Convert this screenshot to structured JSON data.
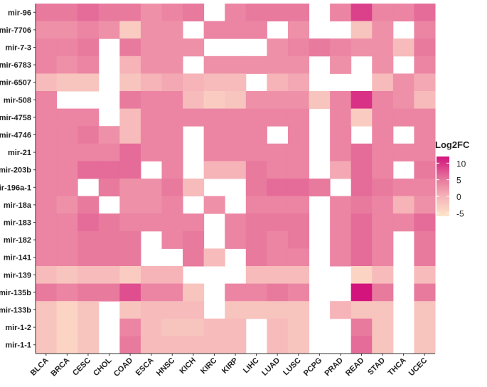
{
  "chart_data": {
    "type": "heatmap",
    "legend_title": "Log2FC",
    "x": [
      "BLCA",
      "BRCA",
      "CESC",
      "CHOL",
      "COAD",
      "ESCA",
      "HNSC",
      "KICH",
      "KIRC",
      "KIRP",
      "LIHC",
      "LUAD",
      "LUSC",
      "PCPG",
      "PRAD",
      "READ",
      "STAD",
      "THCA",
      "UCEC"
    ],
    "y": [
      "mir-96",
      "mir-7706",
      "mir-7-3",
      "mir-6783",
      "mir-6507",
      "mir-508",
      "mir-4758",
      "mir-4746",
      "mir-21",
      "mir-203b",
      "mir-196a-1",
      "mir-18a",
      "mir-183",
      "mir-182",
      "mir-141",
      "mir-139",
      "mir-135b",
      "mir-133b",
      "mir-1-2",
      "mir-1-1"
    ],
    "values": [
      [
        5,
        5,
        6,
        5,
        5,
        3,
        4,
        5,
        null,
        4,
        5,
        5,
        5,
        null,
        4,
        9,
        4,
        4,
        6
      ],
      [
        3,
        3,
        4,
        3,
        -3,
        3,
        3,
        null,
        4,
        4,
        4,
        null,
        3,
        null,
        null,
        -2,
        3,
        null,
        4
      ],
      [
        4,
        4,
        5,
        null,
        5,
        3,
        3,
        3,
        null,
        null,
        null,
        3,
        4,
        5,
        4,
        3,
        3,
        -1,
        5
      ],
      [
        4,
        3,
        4,
        null,
        0,
        3,
        3,
        null,
        3,
        3,
        3,
        3,
        3,
        null,
        3,
        null,
        3,
        null,
        4
      ],
      [
        -1,
        -2,
        -2,
        null,
        -2,
        0,
        1,
        0,
        -1,
        -1,
        null,
        0,
        1,
        null,
        null,
        null,
        -1,
        3,
        1
      ],
      [
        4,
        null,
        null,
        null,
        5,
        4,
        4,
        -1,
        -3,
        -2,
        3,
        3,
        3,
        -2,
        4,
        10,
        4,
        3,
        -1
      ],
      [
        4,
        4,
        4,
        null,
        -1,
        4,
        4,
        4,
        4,
        4,
        4,
        4,
        4,
        null,
        4,
        -3,
        4,
        4,
        4
      ],
      [
        4,
        4,
        5,
        3,
        -1,
        4,
        4,
        null,
        4,
        4,
        4,
        null,
        4,
        null,
        4,
        null,
        4,
        null,
        4
      ],
      [
        4,
        4,
        4,
        4,
        6,
        4,
        4,
        null,
        4,
        4,
        4,
        4,
        4,
        null,
        4,
        6,
        4,
        4,
        4
      ],
      [
        4,
        4,
        6,
        6,
        6,
        null,
        4,
        null,
        0,
        0,
        5,
        4,
        4,
        null,
        1,
        6,
        4,
        null,
        5
      ],
      [
        4,
        4,
        null,
        5,
        3,
        3,
        5,
        -1,
        null,
        null,
        5,
        6,
        6,
        5,
        null,
        6,
        5,
        4,
        4
      ],
      [
        4,
        3,
        5,
        null,
        3,
        3,
        4,
        null,
        3,
        null,
        4,
        4,
        4,
        null,
        4,
        5,
        4,
        0,
        3
      ],
      [
        4,
        4,
        6,
        5,
        4,
        4,
        4,
        4,
        null,
        4,
        5,
        5,
        5,
        null,
        4,
        6,
        4,
        4,
        6
      ],
      [
        4,
        4,
        5,
        5,
        5,
        null,
        4,
        5,
        null,
        4,
        5,
        4,
        5,
        null,
        4,
        6,
        4,
        null,
        5
      ],
      [
        4,
        4,
        5,
        5,
        5,
        null,
        null,
        5,
        -1,
        null,
        5,
        4,
        4,
        null,
        4,
        6,
        4,
        null,
        5
      ],
      [
        -1,
        -2,
        -1,
        -1,
        -3,
        0,
        0,
        null,
        null,
        null,
        -1,
        -1,
        -1,
        null,
        null,
        -4,
        -1,
        null,
        -1
      ],
      [
        5,
        4,
        5,
        5,
        8,
        4,
        4,
        -2,
        null,
        4,
        4,
        5,
        4,
        null,
        null,
        12,
        5,
        null,
        5
      ],
      [
        -2,
        -4,
        -2,
        null,
        -2,
        -1,
        -1,
        -1,
        null,
        -2,
        -2,
        -2,
        -2,
        null,
        0,
        -2,
        -2,
        null,
        -2
      ],
      [
        -2,
        -4,
        -2,
        null,
        4,
        -1,
        -2,
        -2,
        -1,
        -1,
        null,
        -1,
        -2,
        null,
        null,
        5,
        -2,
        null,
        -2
      ],
      [
        -2,
        -4,
        -2,
        null,
        5,
        -1,
        -1,
        -1,
        -1,
        -1,
        null,
        -1,
        -2,
        null,
        null,
        6,
        -2,
        null,
        -2
      ]
    ],
    "clim": [
      -6,
      12
    ],
    "colorbar_ticks": [
      10,
      5,
      0,
      -5
    ],
    "colorscale": [
      [
        -6,
        "#fde5c9"
      ],
      [
        0,
        "#f6b3b8"
      ],
      [
        5,
        "#e87a9e"
      ],
      [
        12,
        "#d2147c"
      ]
    ]
  }
}
